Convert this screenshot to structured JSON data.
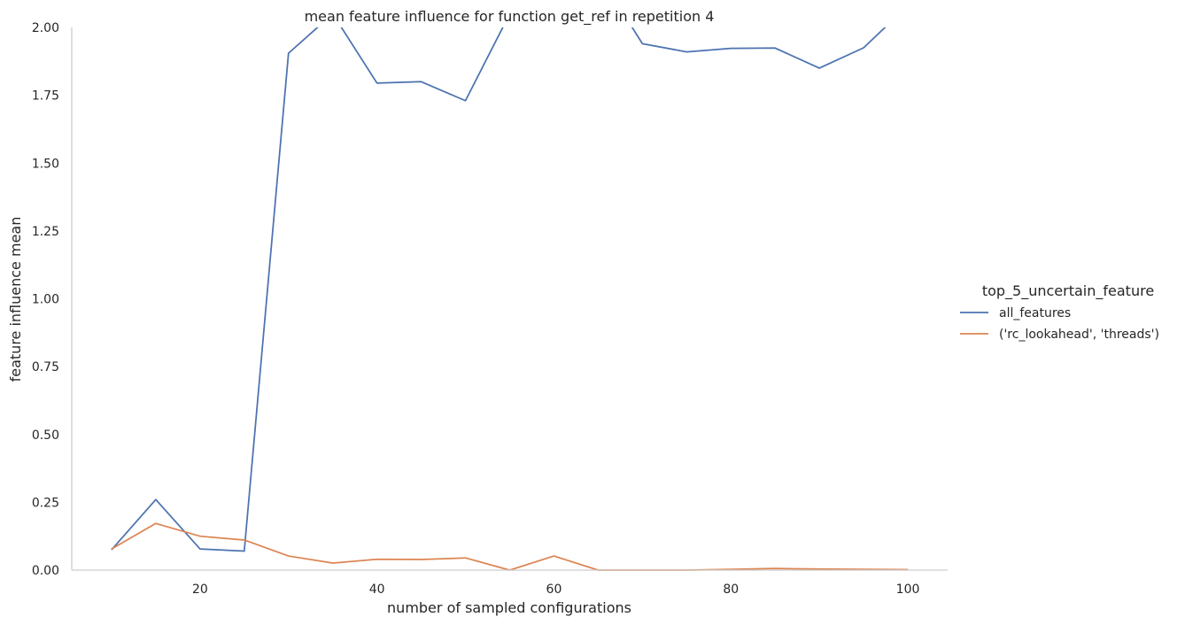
{
  "chart_data": {
    "type": "line",
    "title": "mean feature influence for function get_ref in repetition 4",
    "xlabel": "number of sampled configurations",
    "ylabel": "feature influence mean",
    "xlim": [
      5.5,
      104.5
    ],
    "ylim": [
      0,
      2.0
    ],
    "xticks": [
      20,
      40,
      60,
      80,
      100
    ],
    "yticks": [
      0.0,
      0.25,
      0.5,
      0.75,
      1.0,
      1.25,
      1.5,
      1.75,
      2.0
    ],
    "ytick_labels": [
      "0.00",
      "0.25",
      "0.50",
      "0.75",
      "1.00",
      "1.25",
      "1.50",
      "1.75",
      "2.00"
    ],
    "grid": false,
    "legend": {
      "title": "top_5_uncertain_feature",
      "placement": "right"
    },
    "x": [
      10,
      15,
      20,
      25,
      30,
      35,
      40,
      45,
      50,
      55,
      60,
      65,
      70,
      75,
      80,
      85,
      90,
      95,
      100
    ],
    "series": [
      {
        "name": "all_features",
        "color": "#4c72b0",
        "values": [
          0.075,
          0.26,
          0.078,
          0.07,
          1.905,
          2.05,
          1.795,
          1.8,
          1.73,
          2.05,
          2.2,
          2.2,
          1.94,
          1.91,
          1.923,
          1.924,
          1.85,
          1.925,
          2.08
        ]
      },
      {
        "name": "('rc_lookahead', 'threads')",
        "color": "#dd8452",
        "values": [
          0.078,
          0.172,
          0.125,
          0.111,
          0.052,
          0.026,
          0.04,
          0.039,
          0.045,
          0.0,
          0.052,
          0.0,
          0.0,
          0.0,
          0.003,
          0.006,
          0.004,
          0.003,
          0.002
        ]
      }
    ]
  }
}
